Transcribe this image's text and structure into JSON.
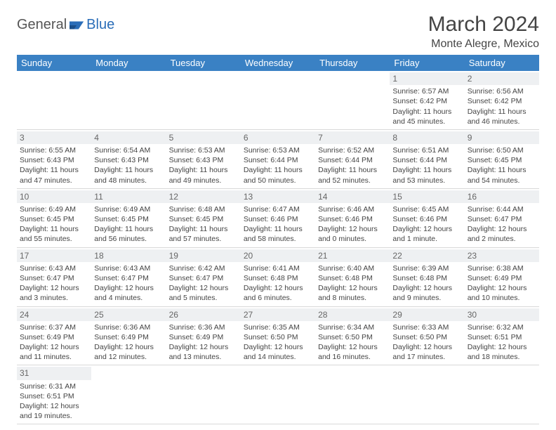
{
  "logo": {
    "part1": "General",
    "part2": "Blue"
  },
  "title": "March 2024",
  "location": "Monte Alegre, Mexico",
  "colors": {
    "header_bg": "#3a81c4",
    "header_fg": "#ffffff",
    "daynum_bg": "#eef0f2",
    "text": "#444444",
    "logo_accent": "#2a6db8"
  },
  "weekdays": [
    "Sunday",
    "Monday",
    "Tuesday",
    "Wednesday",
    "Thursday",
    "Friday",
    "Saturday"
  ],
  "weeks": [
    [
      {
        "n": "",
        "lines": [
          "",
          "",
          "",
          ""
        ]
      },
      {
        "n": "",
        "lines": [
          "",
          "",
          "",
          ""
        ]
      },
      {
        "n": "",
        "lines": [
          "",
          "",
          "",
          ""
        ]
      },
      {
        "n": "",
        "lines": [
          "",
          "",
          "",
          ""
        ]
      },
      {
        "n": "",
        "lines": [
          "",
          "",
          "",
          ""
        ]
      },
      {
        "n": "1",
        "lines": [
          "Sunrise: 6:57 AM",
          "Sunset: 6:42 PM",
          "Daylight: 11 hours",
          "and 45 minutes."
        ]
      },
      {
        "n": "2",
        "lines": [
          "Sunrise: 6:56 AM",
          "Sunset: 6:42 PM",
          "Daylight: 11 hours",
          "and 46 minutes."
        ]
      }
    ],
    [
      {
        "n": "3",
        "lines": [
          "Sunrise: 6:55 AM",
          "Sunset: 6:43 PM",
          "Daylight: 11 hours",
          "and 47 minutes."
        ]
      },
      {
        "n": "4",
        "lines": [
          "Sunrise: 6:54 AM",
          "Sunset: 6:43 PM",
          "Daylight: 11 hours",
          "and 48 minutes."
        ]
      },
      {
        "n": "5",
        "lines": [
          "Sunrise: 6:53 AM",
          "Sunset: 6:43 PM",
          "Daylight: 11 hours",
          "and 49 minutes."
        ]
      },
      {
        "n": "6",
        "lines": [
          "Sunrise: 6:53 AM",
          "Sunset: 6:44 PM",
          "Daylight: 11 hours",
          "and 50 minutes."
        ]
      },
      {
        "n": "7",
        "lines": [
          "Sunrise: 6:52 AM",
          "Sunset: 6:44 PM",
          "Daylight: 11 hours",
          "and 52 minutes."
        ]
      },
      {
        "n": "8",
        "lines": [
          "Sunrise: 6:51 AM",
          "Sunset: 6:44 PM",
          "Daylight: 11 hours",
          "and 53 minutes."
        ]
      },
      {
        "n": "9",
        "lines": [
          "Sunrise: 6:50 AM",
          "Sunset: 6:45 PM",
          "Daylight: 11 hours",
          "and 54 minutes."
        ]
      }
    ],
    [
      {
        "n": "10",
        "lines": [
          "Sunrise: 6:49 AM",
          "Sunset: 6:45 PM",
          "Daylight: 11 hours",
          "and 55 minutes."
        ]
      },
      {
        "n": "11",
        "lines": [
          "Sunrise: 6:49 AM",
          "Sunset: 6:45 PM",
          "Daylight: 11 hours",
          "and 56 minutes."
        ]
      },
      {
        "n": "12",
        "lines": [
          "Sunrise: 6:48 AM",
          "Sunset: 6:45 PM",
          "Daylight: 11 hours",
          "and 57 minutes."
        ]
      },
      {
        "n": "13",
        "lines": [
          "Sunrise: 6:47 AM",
          "Sunset: 6:46 PM",
          "Daylight: 11 hours",
          "and 58 minutes."
        ]
      },
      {
        "n": "14",
        "lines": [
          "Sunrise: 6:46 AM",
          "Sunset: 6:46 PM",
          "Daylight: 12 hours",
          "and 0 minutes."
        ]
      },
      {
        "n": "15",
        "lines": [
          "Sunrise: 6:45 AM",
          "Sunset: 6:46 PM",
          "Daylight: 12 hours",
          "and 1 minute."
        ]
      },
      {
        "n": "16",
        "lines": [
          "Sunrise: 6:44 AM",
          "Sunset: 6:47 PM",
          "Daylight: 12 hours",
          "and 2 minutes."
        ]
      }
    ],
    [
      {
        "n": "17",
        "lines": [
          "Sunrise: 6:43 AM",
          "Sunset: 6:47 PM",
          "Daylight: 12 hours",
          "and 3 minutes."
        ]
      },
      {
        "n": "18",
        "lines": [
          "Sunrise: 6:43 AM",
          "Sunset: 6:47 PM",
          "Daylight: 12 hours",
          "and 4 minutes."
        ]
      },
      {
        "n": "19",
        "lines": [
          "Sunrise: 6:42 AM",
          "Sunset: 6:47 PM",
          "Daylight: 12 hours",
          "and 5 minutes."
        ]
      },
      {
        "n": "20",
        "lines": [
          "Sunrise: 6:41 AM",
          "Sunset: 6:48 PM",
          "Daylight: 12 hours",
          "and 6 minutes."
        ]
      },
      {
        "n": "21",
        "lines": [
          "Sunrise: 6:40 AM",
          "Sunset: 6:48 PM",
          "Daylight: 12 hours",
          "and 8 minutes."
        ]
      },
      {
        "n": "22",
        "lines": [
          "Sunrise: 6:39 AM",
          "Sunset: 6:48 PM",
          "Daylight: 12 hours",
          "and 9 minutes."
        ]
      },
      {
        "n": "23",
        "lines": [
          "Sunrise: 6:38 AM",
          "Sunset: 6:49 PM",
          "Daylight: 12 hours",
          "and 10 minutes."
        ]
      }
    ],
    [
      {
        "n": "24",
        "lines": [
          "Sunrise: 6:37 AM",
          "Sunset: 6:49 PM",
          "Daylight: 12 hours",
          "and 11 minutes."
        ]
      },
      {
        "n": "25",
        "lines": [
          "Sunrise: 6:36 AM",
          "Sunset: 6:49 PM",
          "Daylight: 12 hours",
          "and 12 minutes."
        ]
      },
      {
        "n": "26",
        "lines": [
          "Sunrise: 6:36 AM",
          "Sunset: 6:49 PM",
          "Daylight: 12 hours",
          "and 13 minutes."
        ]
      },
      {
        "n": "27",
        "lines": [
          "Sunrise: 6:35 AM",
          "Sunset: 6:50 PM",
          "Daylight: 12 hours",
          "and 14 minutes."
        ]
      },
      {
        "n": "28",
        "lines": [
          "Sunrise: 6:34 AM",
          "Sunset: 6:50 PM",
          "Daylight: 12 hours",
          "and 16 minutes."
        ]
      },
      {
        "n": "29",
        "lines": [
          "Sunrise: 6:33 AM",
          "Sunset: 6:50 PM",
          "Daylight: 12 hours",
          "and 17 minutes."
        ]
      },
      {
        "n": "30",
        "lines": [
          "Sunrise: 6:32 AM",
          "Sunset: 6:51 PM",
          "Daylight: 12 hours",
          "and 18 minutes."
        ]
      }
    ],
    [
      {
        "n": "31",
        "lines": [
          "Sunrise: 6:31 AM",
          "Sunset: 6:51 PM",
          "Daylight: 12 hours",
          "and 19 minutes."
        ]
      },
      {
        "n": "",
        "lines": [
          "",
          "",
          "",
          ""
        ]
      },
      {
        "n": "",
        "lines": [
          "",
          "",
          "",
          ""
        ]
      },
      {
        "n": "",
        "lines": [
          "",
          "",
          "",
          ""
        ]
      },
      {
        "n": "",
        "lines": [
          "",
          "",
          "",
          ""
        ]
      },
      {
        "n": "",
        "lines": [
          "",
          "",
          "",
          ""
        ]
      },
      {
        "n": "",
        "lines": [
          "",
          "",
          "",
          ""
        ]
      }
    ]
  ]
}
